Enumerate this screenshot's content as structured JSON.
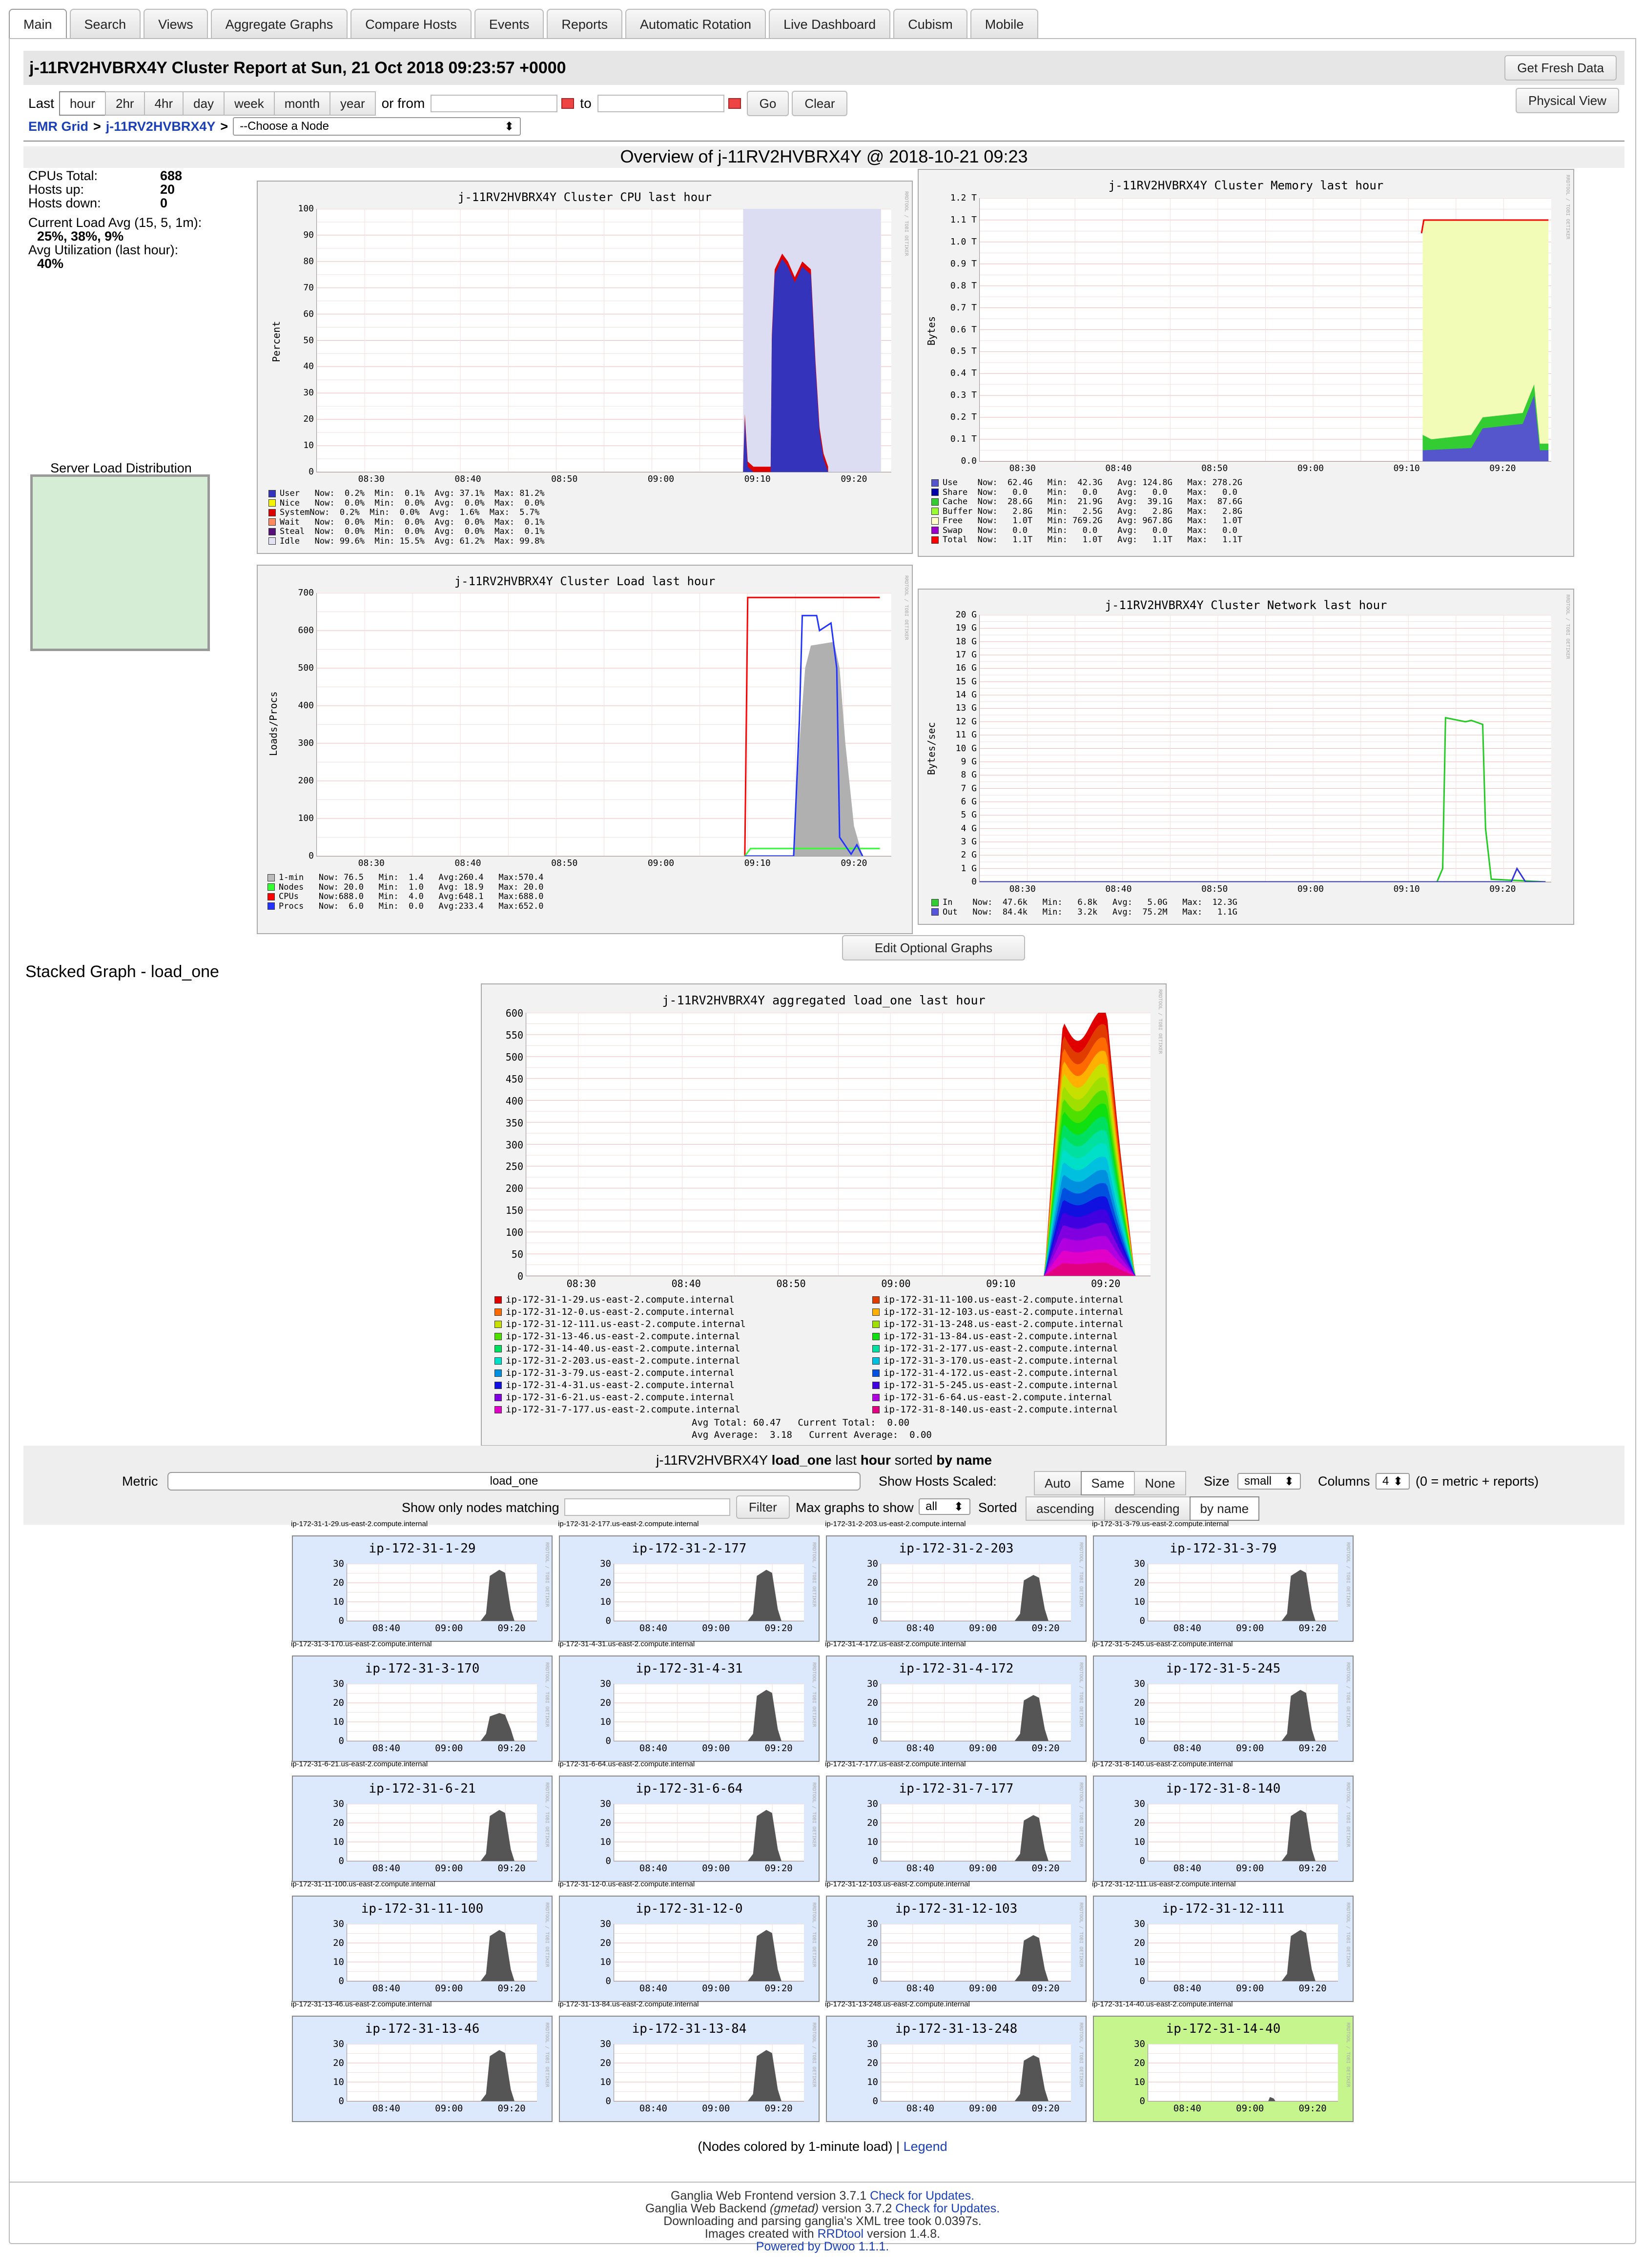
{
  "tabs": [
    "Main",
    "Search",
    "Views",
    "Aggregate Graphs",
    "Compare Hosts",
    "Events",
    "Reports",
    "Automatic Rotation",
    "Live Dashboard",
    "Cubism",
    "Mobile"
  ],
  "header": {
    "title": "j-11RV2HVBRX4Y Cluster Report at Sun, 21 Oct 2018 09:23:57 +0000",
    "fresh": "Get Fresh Data",
    "physical": "Physical View"
  },
  "range": {
    "last": "Last",
    "options": [
      "hour",
      "2hr",
      "4hr",
      "day",
      "week",
      "month",
      "year"
    ],
    "selected": "hour",
    "or_from": "or from",
    "to": "to",
    "go": "Go",
    "clear": "Clear"
  },
  "breadcrumb": {
    "grid": "EMR Grid",
    "sep": ">",
    "cluster": "j-11RV2HVBRX4Y",
    "node_select": "--Choose a Node"
  },
  "overview": "Overview of j-11RV2HVBRX4Y @ 2018-10-21 09:23",
  "stats": {
    "cpus_label": "CPUs Total:",
    "cpus": "688",
    "up_label": "Hosts up:",
    "up": "20",
    "down_label": "Hosts down:",
    "down": "0",
    "load_label": "Current Load Avg (15, 5, 1m):",
    "load": "25%, 38%, 9%",
    "util_label": "Avg Utilization (last hour):",
    "util": "40%"
  },
  "sld": "Server Load Distribution",
  "graphs": {
    "cpu": {
      "title": "j-11RV2HVBRX4Y Cluster CPU last hour",
      "ylabel": "Percent",
      "yticks": [
        "100",
        "90",
        "80",
        "70",
        "60",
        "50",
        "40",
        "30",
        "20",
        "10",
        "0"
      ],
      "xticks": [
        "08:30",
        "08:40",
        "08:50",
        "09:00",
        "09:10",
        "09:20"
      ],
      "legend": [
        [
          "#3333bb",
          "User   Now:  0.2%  Min:  0.1%  Avg: 37.1%  Max: 81.2%"
        ],
        [
          "#f4f400",
          "Nice   Now:  0.0%  Min:  0.0%  Avg:  0.0%  Max:  0.0%"
        ],
        [
          "#dd0000",
          "SystemNow:  0.2%  Min:  0.0%  Avg:  1.6%  Max:  5.7%"
        ],
        [
          "#ff8a60",
          "Wait   Now:  0.0%  Min:  0.0%  Avg:  0.0%  Max:  0.1%"
        ],
        [
          "#551177",
          "Steal  Now:  0.0%  Min:  0.0%  Avg:  0.0%  Max:  0.1%"
        ],
        [
          "#e2e2f2",
          "Idle   Now: 99.6%  Min: 15.5%  Avg: 61.2%  Max: 99.8%"
        ]
      ]
    },
    "mem": {
      "title": "j-11RV2HVBRX4Y Cluster Memory last hour",
      "ylabel": "Bytes",
      "yticks": [
        "1.2 T",
        "1.1 T",
        "1.0 T",
        "0.9 T",
        "0.8 T",
        "0.7 T",
        "0.6 T",
        "0.5 T",
        "0.4 T",
        "0.3 T",
        "0.2 T",
        "0.1 T",
        "0.0"
      ],
      "xticks": [
        "08:30",
        "08:40",
        "08:50",
        "09:00",
        "09:10",
        "09:20"
      ],
      "legend": [
        [
          "#5555cc",
          "Use    Now:  62.4G   Min:  42.3G   Avg: 124.8G   Max: 278.2G"
        ],
        [
          "#0000aa",
          "Share  Now:   0.0    Min:   0.0    Avg:   0.0    Max:   0.0"
        ],
        [
          "#33cc33",
          "Cache  Now:  28.6G   Min:  21.9G   Avg:  39.1G   Max:  87.6G"
        ],
        [
          "#99ff33",
          "Buffer Now:   2.8G   Min:   2.5G   Avg:   2.8G   Max:   2.8G"
        ],
        [
          "#ffffcc",
          "Free   Now:   1.0T   Min: 769.2G   Avg: 967.8G   Max:   1.0T"
        ],
        [
          "#9900cc",
          "Swap   Now:   0.0    Min:   0.0    Avg:   0.0    Max:   0.0"
        ],
        [
          "#ff0000",
          "Total  Now:   1.1T   Min:   1.0T   Avg:   1.1T   Max:   1.1T"
        ]
      ]
    },
    "load": {
      "title": "j-11RV2HVBRX4Y Cluster Load last hour",
      "ylabel": "Loads/Procs",
      "yticks": [
        "700",
        "600",
        "500",
        "400",
        "300",
        "200",
        "100",
        "0"
      ],
      "xticks": [
        "08:30",
        "08:40",
        "08:50",
        "09:00",
        "09:10",
        "09:20"
      ],
      "legend": [
        [
          "#bbbbbb",
          "1-min   Now: 76.5   Min:  1.4   Avg:260.4   Max:570.4"
        ],
        [
          "#33ff33",
          "Nodes   Now: 20.0   Min:  1.0   Avg: 18.9   Max: 20.0"
        ],
        [
          "#ff0000",
          "CPUs    Now:688.0   Min:  4.0   Avg:648.1   Max:688.0"
        ],
        [
          "#2233ff",
          "Procs   Now:  6.0   Min:  0.0   Avg:233.4   Max:652.0"
        ]
      ]
    },
    "net": {
      "title": "j-11RV2HVBRX4Y Cluster Network last hour",
      "ylabel": "Bytes/sec",
      "yticks": [
        "20 G",
        "19 G",
        "18 G",
        "17 G",
        "16 G",
        "15 G",
        "14 G",
        "13 G",
        "12 G",
        "11 G",
        "10 G",
        "9 G",
        "8 G",
        "7 G",
        "6 G",
        "5 G",
        "4 G",
        "3 G",
        "2 G",
        "1 G",
        "0"
      ],
      "xticks": [
        "08:30",
        "08:40",
        "08:50",
        "09:00",
        "09:10",
        "09:20"
      ],
      "legend": [
        [
          "#33cc33",
          "In    Now:  47.6k   Min:   6.8k   Avg:   5.0G   Max:  12.3G"
        ],
        [
          "#5555dd",
          "Out   Now:  84.4k   Min:   3.2k   Avg:  75.2M   Max:   1.1G"
        ]
      ]
    }
  },
  "edit_graphs": "Edit Optional Graphs",
  "stacked": {
    "heading": "Stacked Graph - load_one",
    "title": "j-11RV2HVBRX4Y aggregated load_one last hour",
    "yticks": [
      "600",
      "550",
      "500",
      "450",
      "400",
      "350",
      "300",
      "250",
      "200",
      "150",
      "100",
      "50",
      "0"
    ],
    "xticks": [
      "08:30",
      "08:40",
      "08:50",
      "09:00",
      "09:10",
      "09:20"
    ],
    "legend_left": [
      [
        "#e00000",
        "ip-172-31-1-29.us-east-2.compute.internal"
      ],
      [
        "#ff6a00",
        "ip-172-31-12-0.us-east-2.compute.internal"
      ],
      [
        "#c8e000",
        "ip-172-31-12-111.us-east-2.compute.internal"
      ],
      [
        "#50e000",
        "ip-172-31-13-46.us-east-2.compute.internal"
      ],
      [
        "#00e060",
        "ip-172-31-14-40.us-east-2.compute.internal"
      ],
      [
        "#00e0c8",
        "ip-172-31-2-203.us-east-2.compute.internal"
      ],
      [
        "#0090e0",
        "ip-172-31-3-79.us-east-2.compute.internal"
      ],
      [
        "#1010e0",
        "ip-172-31-4-31.us-east-2.compute.internal"
      ],
      [
        "#8000e0",
        "ip-172-31-6-21.us-east-2.compute.internal"
      ],
      [
        "#e000c8",
        "ip-172-31-7-177.us-east-2.compute.internal"
      ]
    ],
    "legend_right": [
      [
        "#e03c00",
        "ip-172-31-11-100.us-east-2.compute.internal"
      ],
      [
        "#ffb000",
        "ip-172-31-12-103.us-east-2.compute.internal"
      ],
      [
        "#a0e000",
        "ip-172-31-13-248.us-east-2.compute.internal"
      ],
      [
        "#10e010",
        "ip-172-31-13-84.us-east-2.compute.internal"
      ],
      [
        "#00e0a0",
        "ip-172-31-2-177.us-east-2.compute.internal"
      ],
      [
        "#00c0e0",
        "ip-172-31-3-170.us-east-2.compute.internal"
      ],
      [
        "#0050e0",
        "ip-172-31-4-172.us-east-2.compute.internal"
      ],
      [
        "#4000e0",
        "ip-172-31-5-245.us-east-2.compute.internal"
      ],
      [
        "#b000e0",
        "ip-172-31-6-64.us-east-2.compute.internal"
      ],
      [
        "#e00080",
        "ip-172-31-8-140.us-east-2.compute.internal"
      ]
    ],
    "totals1": "Avg Total: 60.47   Current Total:  0.00",
    "totals2": "Avg Average:  3.18   Current Average:  0.00"
  },
  "controls": {
    "heading_pre": "j-11RV2HVBRX4Y",
    "metric_b": "load_one",
    "heading_mid": "last",
    "range_b": "hour",
    "heading_sorted": "sorted",
    "sort_b": "by name",
    "metric_label": "Metric",
    "metric_value": "load_one",
    "scaled_label": "Show Hosts Scaled:",
    "scaled_opts": [
      "Auto",
      "Same",
      "None"
    ],
    "size_label": "Size",
    "size_value": "small",
    "cols_label": "Columns",
    "cols_value": "4",
    "cols_note": "(0 = metric + reports)",
    "filter_label": "Show only nodes matching",
    "filter_btn": "Filter",
    "max_label": "Max graphs to show",
    "max_value": "all",
    "sorted_label": "Sorted",
    "sort_opts": [
      "ascending",
      "descending",
      "by name"
    ]
  },
  "hosts": [
    {
      "cap": "ip-172-31-1-29.us-east-2.compute.internal",
      "name": "ip-172-31-1-29"
    },
    {
      "cap": "ip-172-31-2-177.us-east-2.compute.internal",
      "name": "ip-172-31-2-177"
    },
    {
      "cap": "ip-172-31-2-203.us-east-2.compute.internal",
      "name": "ip-172-31-2-203"
    },
    {
      "cap": "ip-172-31-3-79.us-east-2.compute.internal",
      "name": "ip-172-31-3-79"
    },
    {
      "cap": "ip-172-31-3-170.us-east-2.compute.internal",
      "name": "ip-172-31-3-170"
    },
    {
      "cap": "ip-172-31-4-31.us-east-2.compute.internal",
      "name": "ip-172-31-4-31"
    },
    {
      "cap": "ip-172-31-4-172.us-east-2.compute.internal",
      "name": "ip-172-31-4-172"
    },
    {
      "cap": "ip-172-31-5-245.us-east-2.compute.internal",
      "name": "ip-172-31-5-245"
    },
    {
      "cap": "ip-172-31-6-21.us-east-2.compute.internal",
      "name": "ip-172-31-6-21"
    },
    {
      "cap": "ip-172-31-6-64.us-east-2.compute.internal",
      "name": "ip-172-31-6-64"
    },
    {
      "cap": "ip-172-31-7-177.us-east-2.compute.internal",
      "name": "ip-172-31-7-177"
    },
    {
      "cap": "ip-172-31-8-140.us-east-2.compute.internal",
      "name": "ip-172-31-8-140"
    },
    {
      "cap": "ip-172-31-11-100.us-east-2.compute.internal",
      "name": "ip-172-31-11-100"
    },
    {
      "cap": "ip-172-31-12-0.us-east-2.compute.internal",
      "name": "ip-172-31-12-0"
    },
    {
      "cap": "ip-172-31-12-103.us-east-2.compute.internal",
      "name": "ip-172-31-12-103"
    },
    {
      "cap": "ip-172-31-12-111.us-east-2.compute.internal",
      "name": "ip-172-31-12-111"
    },
    {
      "cap": "ip-172-31-13-46.us-east-2.compute.internal",
      "name": "ip-172-31-13-46"
    },
    {
      "cap": "ip-172-31-13-84.us-east-2.compute.internal",
      "name": "ip-172-31-13-84"
    },
    {
      "cap": "ip-172-31-13-248.us-east-2.compute.internal",
      "name": "ip-172-31-13-248"
    },
    {
      "cap": "ip-172-31-14-40.us-east-2.compute.internal",
      "name": "ip-172-31-14-40"
    }
  ],
  "small_yticks": [
    "30",
    "20",
    "10",
    "0"
  ],
  "small_xticks": [
    "08:40",
    "09:00",
    "09:20"
  ],
  "note": {
    "text": "(Nodes colored by 1-minute load) |",
    "link": "Legend"
  },
  "footer": {
    "l1a": "Ganglia Web Frontend version 3.7.1",
    "l1b": "Check for Updates.",
    "l2a": "Ganglia Web Backend",
    "l2i": "(gmetad)",
    "l2c": "version 3.7.2",
    "l2b": "Check for Updates.",
    "l3": "Downloading and parsing ganglia's XML tree took 0.0397s.",
    "l4a": "Images created with",
    "l4b": "RRDtool",
    "l4c": "version 1.4.8.",
    "l5a": "Powered by Dwoo",
    "l5b": "1.1.1."
  },
  "rrd": "RRDTOOL / TOBI OETIKER"
}
